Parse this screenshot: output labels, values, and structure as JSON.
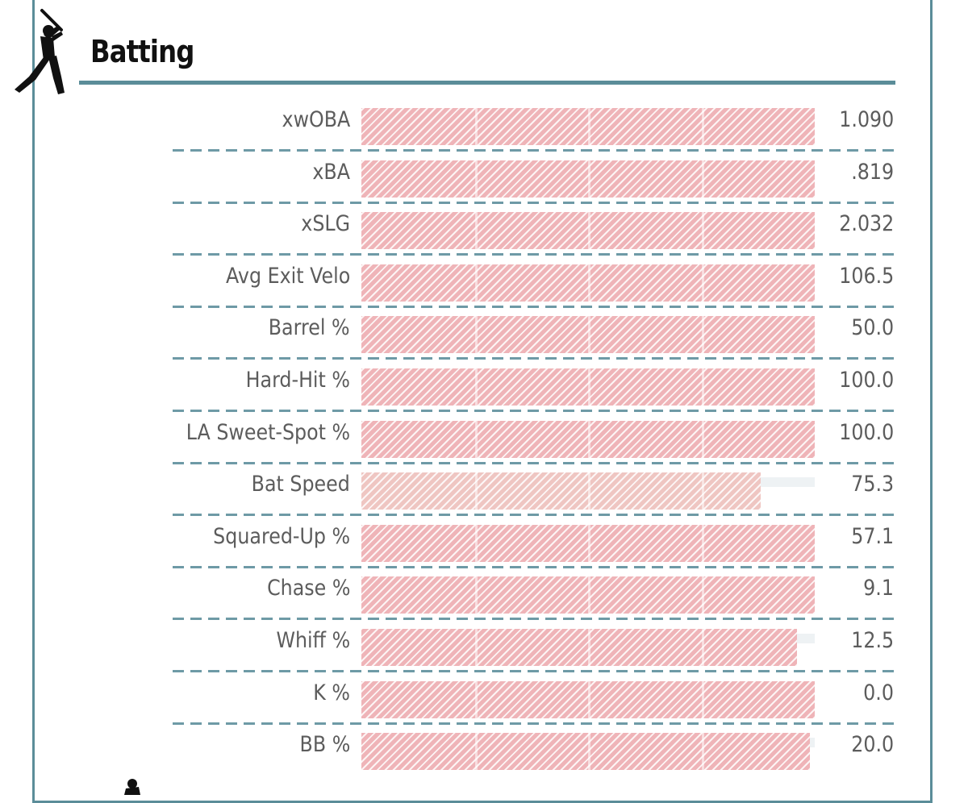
{
  "section": {
    "title": "Batting",
    "icon": "batter-silhouette-icon",
    "accent_color": "#5b8d99",
    "bar_color": "#efb4b8"
  },
  "stats": [
    {
      "label": "xwOBA",
      "value": "1.090",
      "percentile": 100
    },
    {
      "label": "xBA",
      "value": ".819",
      "percentile": 100
    },
    {
      "label": "xSLG",
      "value": "2.032",
      "percentile": 100
    },
    {
      "label": "Avg Exit Velo",
      "value": "106.5",
      "percentile": 100
    },
    {
      "label": "Barrel %",
      "value": "50.0",
      "percentile": 100
    },
    {
      "label": "Hard-Hit %",
      "value": "100.0",
      "percentile": 100
    },
    {
      "label": "LA Sweet-Spot %",
      "value": "100.0",
      "percentile": 100
    },
    {
      "label": "Bat Speed",
      "value": "75.3",
      "percentile": 88
    },
    {
      "label": "Squared-Up %",
      "value": "57.1",
      "percentile": 100
    },
    {
      "label": "Chase %",
      "value": "9.1",
      "percentile": 100
    },
    {
      "label": "Whiff %",
      "value": "12.5",
      "percentile": 96
    },
    {
      "label": "K %",
      "value": "0.0",
      "percentile": 100
    },
    {
      "label": "BB %",
      "value": "20.0",
      "percentile": 99
    }
  ]
}
